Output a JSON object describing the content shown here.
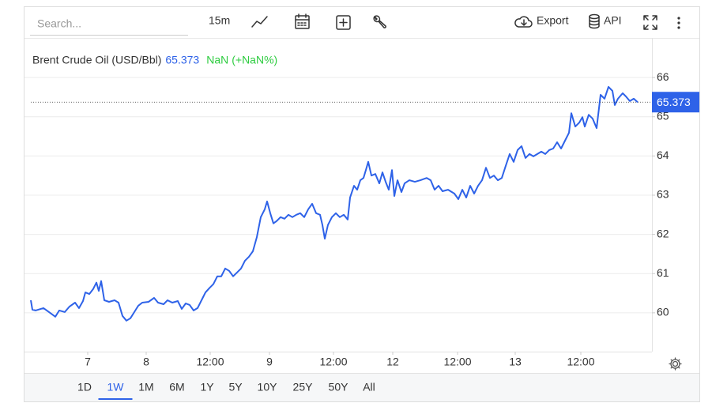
{
  "toolbar": {
    "search_placeholder": "Search...",
    "interval": "15m",
    "export": "Export",
    "api": "API"
  },
  "chart_data": {
    "type": "line",
    "legend": {
      "name": "Brent Crude Oil (USD/Bbl)",
      "change": "NaN",
      "change_pct": "(+NaN%)",
      "value_color": "#2e62e8",
      "change_color": "#2ecc40"
    },
    "last_value": 65.373,
    "x": [
      0.0,
      0.2,
      0.6,
      1.6,
      2.3,
      3.1,
      3.6,
      4.3,
      4.9,
      5.6,
      6.1,
      6.6,
      6.9,
      7.4,
      7.9,
      8.3,
      8.6,
      8.9,
      9.3,
      9.9,
      10.6,
      11.1,
      11.6,
      12.1,
      12.6,
      13.1,
      13.6,
      14.1,
      14.9,
      15.6,
      16.1,
      16.8,
      17.3,
      17.9,
      18.6,
      19.1,
      19.6,
      20.1,
      20.6,
      21.1,
      21.6,
      22.1,
      22.6,
      23.1,
      23.6,
      24.1,
      24.6,
      25.1,
      25.6,
      26.1,
      26.6,
      27.1,
      27.6,
      28.1,
      28.6,
      29.1,
      29.6,
      29.9,
      30.3,
      30.7,
      31.1,
      31.6,
      32.1,
      32.6,
      33.1,
      33.6,
      34.1,
      34.6,
      35.1,
      35.6,
      36.1,
      36.6,
      36.9,
      37.2,
      37.6,
      38.1,
      38.6,
      39.1,
      39.6,
      40.1,
      40.4,
      40.9,
      41.3,
      41.7,
      42.1,
      42.4,
      42.7,
      43.1,
      43.6,
      44.1,
      44.5,
      44.9,
      45.3,
      45.7,
      46.0,
      46.4,
      46.9,
      47.3,
      47.9,
      48.6,
      49.3,
      50.1,
      50.6,
      51.1,
      51.6,
      52.1,
      52.8,
      53.6,
      54.1,
      54.6,
      55.1,
      55.6,
      56.1,
      56.6,
      57.1,
      57.6,
      58.1,
      58.6,
      59.1,
      59.6,
      60.1,
      60.6,
      61.1,
      61.6,
      62.1,
      62.6,
      63.1,
      63.6,
      64.1,
      64.6,
      65.1,
      65.6,
      66.1,
      66.6,
      67.1,
      67.6,
      68.1,
      68.4,
      68.9,
      69.4,
      69.8,
      70.1,
      70.6,
      71.1,
      71.6,
      72.1,
      72.6,
      73.1,
      73.6,
      73.9,
      74.3,
      74.9,
      75.3,
      75.8,
      76.3,
      76.8
    ],
    "series": [
      {
        "name": "Brent Crude Oil (USD/Bbl)",
        "color": "#2e62e8",
        "values": [
          60.32,
          60.08,
          60.06,
          60.12,
          60.02,
          59.9,
          60.06,
          60.02,
          60.16,
          60.26,
          60.12,
          60.3,
          60.52,
          60.48,
          60.61,
          60.77,
          60.56,
          60.81,
          60.32,
          60.28,
          60.32,
          60.26,
          59.92,
          59.8,
          59.86,
          60.02,
          60.18,
          60.26,
          60.28,
          60.38,
          60.26,
          60.22,
          60.32,
          60.26,
          60.3,
          60.1,
          60.24,
          60.2,
          60.06,
          60.12,
          60.32,
          60.52,
          60.63,
          60.73,
          60.93,
          60.93,
          61.13,
          61.07,
          60.93,
          61.03,
          61.13,
          61.33,
          61.43,
          61.57,
          61.93,
          62.44,
          62.64,
          62.84,
          62.54,
          62.28,
          62.34,
          62.44,
          62.4,
          62.5,
          62.44,
          62.5,
          62.54,
          62.44,
          62.64,
          62.78,
          62.54,
          62.5,
          62.24,
          61.89,
          62.24,
          62.44,
          62.54,
          62.44,
          62.5,
          62.38,
          62.94,
          63.24,
          63.14,
          63.38,
          63.44,
          63.64,
          63.85,
          63.5,
          63.54,
          63.3,
          63.58,
          63.34,
          63.14,
          63.64,
          62.98,
          63.38,
          63.08,
          63.3,
          63.38,
          63.34,
          63.38,
          63.44,
          63.38,
          63.14,
          63.24,
          63.1,
          63.14,
          63.04,
          62.9,
          63.14,
          62.94,
          63.24,
          63.04,
          63.24,
          63.38,
          63.7,
          63.44,
          63.5,
          63.38,
          63.44,
          63.75,
          64.05,
          63.85,
          64.15,
          64.25,
          63.95,
          64.05,
          63.99,
          64.05,
          64.11,
          64.05,
          64.15,
          64.19,
          64.35,
          64.19,
          64.39,
          64.59,
          65.09,
          64.75,
          64.85,
          64.99,
          64.75,
          65.05,
          64.95,
          64.71,
          65.56,
          65.46,
          65.76,
          65.66,
          65.3,
          65.46,
          65.6,
          65.52,
          65.4,
          65.46,
          65.37
        ]
      }
    ],
    "xlim": [
      0,
      78.1
    ],
    "xticks": [
      {
        "value": 7.2,
        "label": "7"
      },
      {
        "value": 14.6,
        "label": "8"
      },
      {
        "value": 22.7,
        "label": "12:00"
      },
      {
        "value": 30.2,
        "label": "9"
      },
      {
        "value": 38.3,
        "label": "12:00"
      },
      {
        "value": 45.8,
        "label": "12"
      },
      {
        "value": 54.0,
        "label": "12:00"
      },
      {
        "value": 61.3,
        "label": "13"
      },
      {
        "value": 69.6,
        "label": "12:00"
      }
    ],
    "ylim": [
      59.01,
      66.97
    ],
    "yticks": [
      60,
      61,
      62,
      63,
      64,
      65,
      66
    ],
    "grid": true
  },
  "range_buttons": {
    "options": [
      "1D",
      "1W",
      "1M",
      "6M",
      "1Y",
      "5Y",
      "10Y",
      "25Y",
      "50Y",
      "All"
    ],
    "active": 1
  }
}
